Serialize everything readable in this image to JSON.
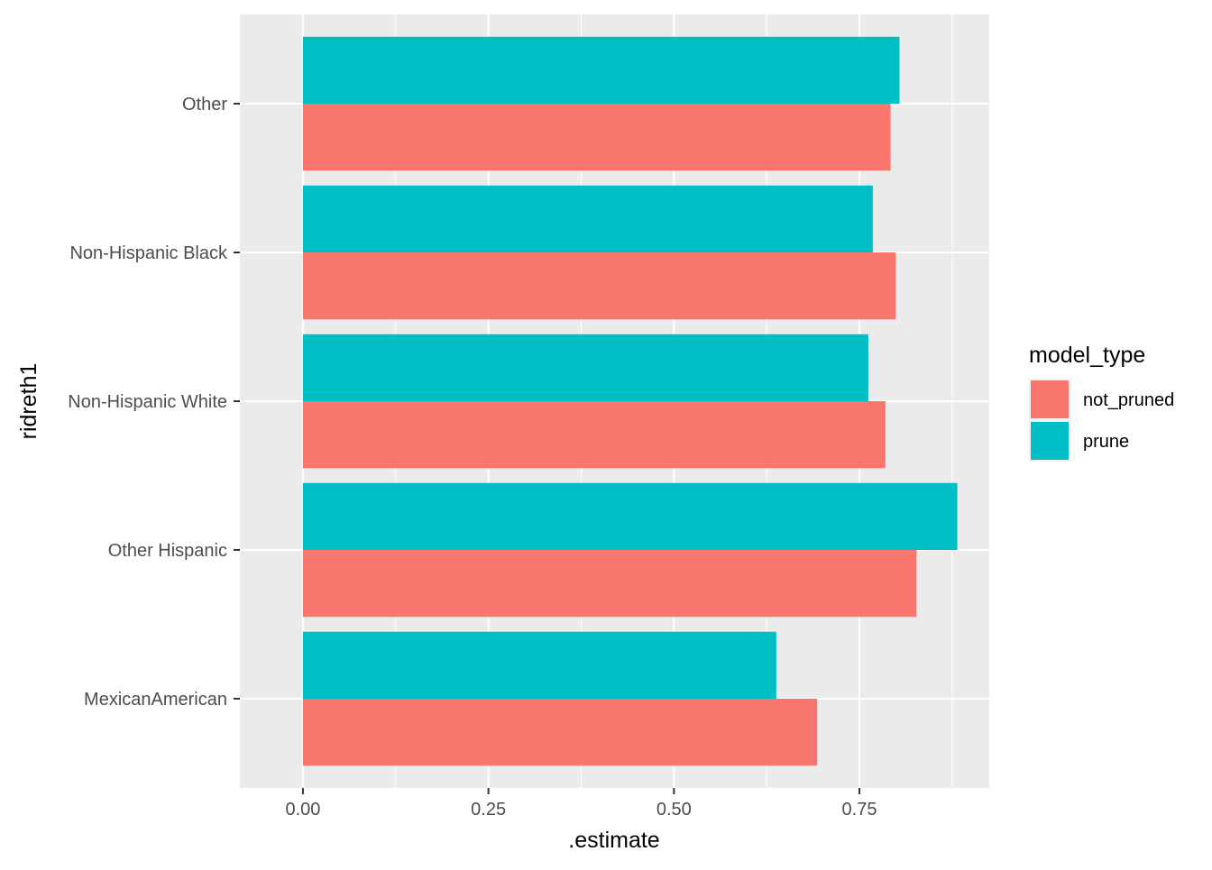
{
  "chart_data": {
    "type": "bar",
    "orientation": "horizontal",
    "xlabel": ".estimate",
    "ylabel": "ridreth1",
    "xlim": [
      -0.085,
      0.925
    ],
    "x_ticks": [
      0.0,
      0.25,
      0.5,
      0.75
    ],
    "x_tick_labels": [
      "0.00",
      "0.25",
      "0.50",
      "0.75"
    ],
    "categories": [
      "MexicanAmerican",
      "Other Hispanic",
      "Non-Hispanic White",
      "Non-Hispanic Black",
      "Other"
    ],
    "series": [
      {
        "name": "not_pruned",
        "color": "#F8766D",
        "values": [
          0.693,
          0.827,
          0.785,
          0.799,
          0.792
        ]
      },
      {
        "name": "prune",
        "color": "#00BFC4",
        "values": [
          0.638,
          0.882,
          0.762,
          0.768,
          0.804
        ]
      }
    ],
    "legend": {
      "title": "model_type",
      "position": "right"
    },
    "grid": true,
    "panel_background": "#EBEBEB",
    "grid_color": "#FFFFFF"
  }
}
